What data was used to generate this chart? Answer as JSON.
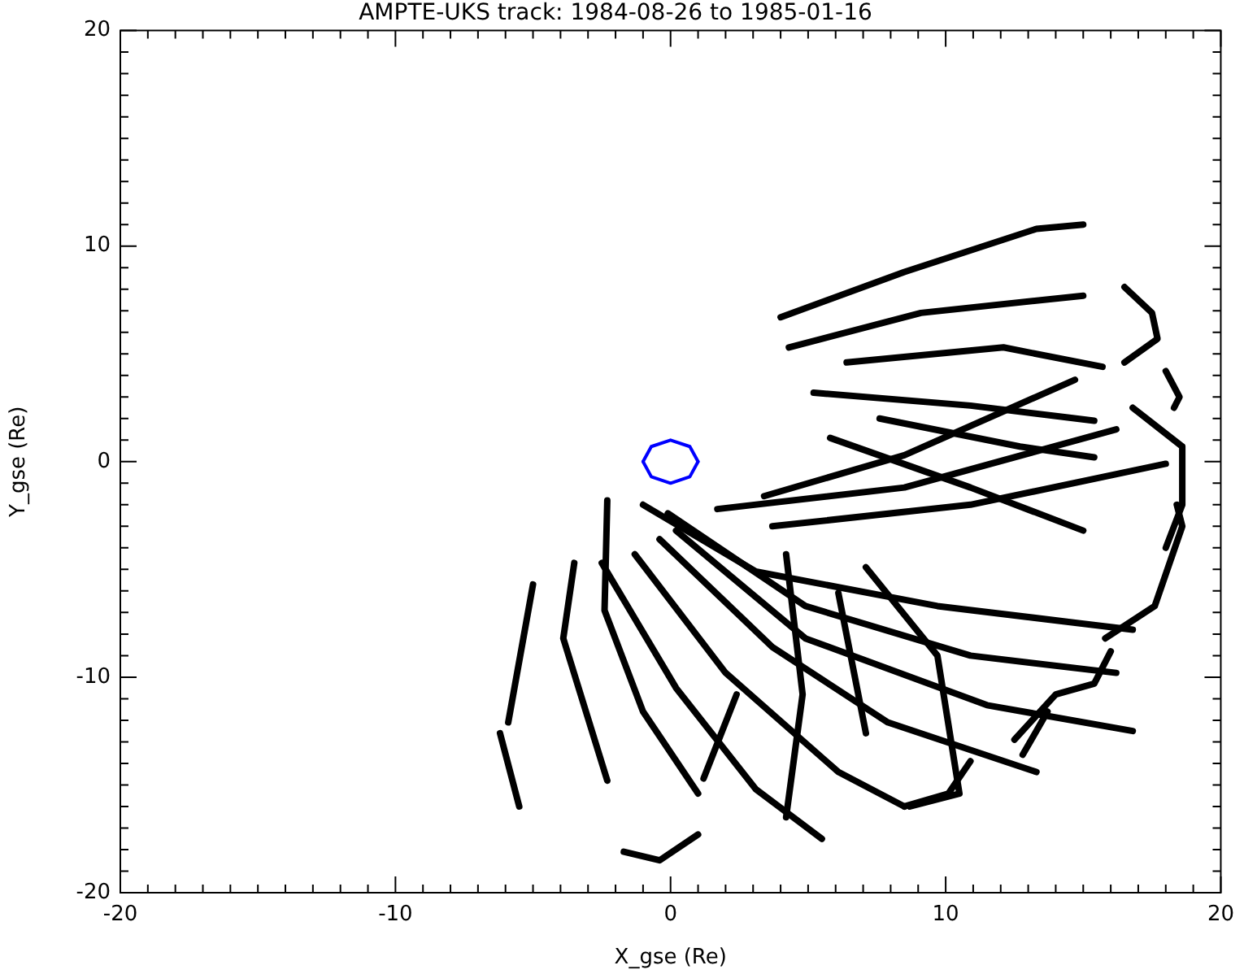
{
  "chart_data": {
    "type": "line",
    "title": "AMPTE-UKS track: 1984-08-26 to 1985-01-16",
    "xlabel": "X_gse (Re)",
    "ylabel": "Y_gse (Re)",
    "xlim": [
      -20,
      20
    ],
    "ylim": [
      -20,
      20
    ],
    "xticks": [
      -20,
      {
        "value": -19,
        "label": null
      },
      {
        "value": -18,
        "label": null
      },
      {
        "value": -17,
        "label": null
      },
      {
        "value": -16,
        "label": null
      },
      {
        "value": -15,
        "label": null
      },
      {
        "value": -14,
        "label": null
      },
      {
        "value": -13,
        "label": null
      },
      {
        "value": -12,
        "label": null
      },
      {
        "value": -11,
        "label": null
      },
      -10,
      {
        "value": -9,
        "label": null
      },
      {
        "value": -8,
        "label": null
      },
      {
        "value": -7,
        "label": null
      },
      {
        "value": -6,
        "label": null
      },
      {
        "value": -5,
        "label": null
      },
      {
        "value": -4,
        "label": null
      },
      {
        "value": -3,
        "label": null
      },
      {
        "value": -2,
        "label": null
      },
      {
        "value": -1,
        "label": null
      },
      0,
      {
        "value": 1,
        "label": null
      },
      {
        "value": 2,
        "label": null
      },
      {
        "value": 3,
        "label": null
      },
      {
        "value": 4,
        "label": null
      },
      {
        "value": 5,
        "label": null
      },
      {
        "value": 6,
        "label": null
      },
      {
        "value": 7,
        "label": null
      },
      {
        "value": 8,
        "label": null
      },
      {
        "value": 9,
        "label": null
      },
      10,
      {
        "value": 11,
        "label": null
      },
      {
        "value": 12,
        "label": null
      },
      {
        "value": 13,
        "label": null
      },
      {
        "value": 14,
        "label": null
      },
      {
        "value": 15,
        "label": null
      },
      {
        "value": 16,
        "label": null
      },
      {
        "value": 17,
        "label": null
      },
      {
        "value": 18,
        "label": null
      },
      {
        "value": 19,
        "label": null
      },
      20
    ],
    "yticks": [
      -20,
      {
        "value": -19,
        "label": null
      },
      {
        "value": -18,
        "label": null
      },
      {
        "value": -17,
        "label": null
      },
      {
        "value": -16,
        "label": null
      },
      {
        "value": -15,
        "label": null
      },
      {
        "value": -14,
        "label": null
      },
      {
        "value": -13,
        "label": null
      },
      {
        "value": -12,
        "label": null
      },
      {
        "value": -11,
        "label": null
      },
      -10,
      {
        "value": -9,
        "label": null
      },
      {
        "value": -8,
        "label": null
      },
      {
        "value": -7,
        "label": null
      },
      {
        "value": -6,
        "label": null
      },
      {
        "value": -5,
        "label": null
      },
      {
        "value": -4,
        "label": null
      },
      {
        "value": -3,
        "label": null
      },
      {
        "value": -2,
        "label": null
      },
      {
        "value": -1,
        "label": null
      },
      0,
      {
        "value": 1,
        "label": null
      },
      {
        "value": 2,
        "label": null
      },
      {
        "value": 3,
        "label": null
      },
      {
        "value": 4,
        "label": null
      },
      {
        "value": 5,
        "label": null
      },
      {
        "value": 6,
        "label": null
      },
      {
        "value": 7,
        "label": null
      },
      {
        "value": 8,
        "label": null
      },
      {
        "value": 9,
        "label": null
      },
      10,
      {
        "value": 11,
        "label": null
      },
      {
        "value": 12,
        "label": null
      },
      {
        "value": 13,
        "label": null
      },
      {
        "value": 14,
        "label": null
      },
      {
        "value": 15,
        "label": null
      },
      {
        "value": 16,
        "label": null
      },
      {
        "value": 17,
        "label": null
      },
      {
        "value": 18,
        "label": null
      },
      {
        "value": 19,
        "label": null
      },
      20
    ],
    "grid": false,
    "legend": false,
    "marker": "none",
    "line_style": "solid",
    "series": [
      {
        "color": "#000000",
        "x": [
          4.0,
          8.5,
          13.3,
          15.0
        ],
        "values": [
          6.7,
          8.8,
          10.8,
          11.0
        ]
      },
      {
        "color": "#000000",
        "x": [
          4.3,
          9.1,
          15.0
        ],
        "values": [
          5.3,
          6.9,
          7.7
        ]
      },
      {
        "color": "#000000",
        "x": [
          6.4,
          12.1,
          15.7
        ],
        "values": [
          4.6,
          5.3,
          4.4
        ]
      },
      {
        "color": "#000000",
        "x": [
          5.2,
          10.9,
          15.4
        ],
        "values": [
          3.2,
          2.6,
          1.9
        ]
      },
      {
        "color": "#000000",
        "x": [
          7.6,
          12.7,
          15.4
        ],
        "values": [
          2.0,
          0.7,
          0.2
        ]
      },
      {
        "color": "#000000",
        "x": [
          5.8,
          10.9,
          15.0
        ],
        "values": [
          1.1,
          -1.2,
          -3.2
        ]
      },
      {
        "color": "#000000",
        "x": [
          3.4,
          8.5,
          14.7
        ],
        "values": [
          -1.6,
          0.3,
          3.8
        ]
      },
      {
        "color": "#000000",
        "x": [
          1.7,
          8.5,
          16.2
        ],
        "values": [
          -2.2,
          -1.2,
          1.5
        ]
      },
      {
        "color": "#000000",
        "x": [
          3.7,
          10.9,
          18.0
        ],
        "values": [
          -3.0,
          -2.0,
          -0.1
        ]
      },
      {
        "color": "#000000",
        "x": [
          16.5,
          17.5,
          17.7,
          16.5
        ],
        "values": [
          8.1,
          6.9,
          5.7,
          4.6
        ]
      },
      {
        "color": "#000000",
        "x": [
          18.0,
          18.5,
          18.3
        ],
        "values": [
          4.2,
          3.0,
          2.5
        ]
      },
      {
        "color": "#000000",
        "x": [
          16.8,
          18.6,
          18.6,
          18.0
        ],
        "values": [
          2.5,
          0.7,
          -2.0,
          -4.0
        ]
      },
      {
        "color": "#000000",
        "x": [
          18.4,
          18.6,
          17.6,
          15.8
        ],
        "values": [
          -2.0,
          -3.0,
          -6.7,
          -8.2
        ]
      },
      {
        "color": "#000000",
        "x": [
          -1.0,
          3.1,
          9.7,
          16.8
        ],
        "values": [
          -2.0,
          -5.1,
          -6.7,
          -7.8
        ]
      },
      {
        "color": "#000000",
        "x": [
          -0.1,
          4.9,
          10.9,
          16.2
        ],
        "values": [
          -2.4,
          -6.7,
          -9.0,
          -9.8
        ]
      },
      {
        "color": "#000000",
        "x": [
          0.2,
          4.9,
          11.5,
          16.8
        ],
        "values": [
          -3.2,
          -8.2,
          -11.3,
          -12.5
        ]
      },
      {
        "color": "#000000",
        "x": [
          -0.4,
          3.7,
          7.9,
          13.3
        ],
        "values": [
          -3.6,
          -8.6,
          -12.1,
          -14.4
        ]
      },
      {
        "color": "#000000",
        "x": [
          -1.3,
          2.0,
          6.1,
          8.5
        ],
        "values": [
          -4.3,
          -9.8,
          -14.4,
          -16.0
        ]
      },
      {
        "color": "#000000",
        "x": [
          -2.5,
          0.2,
          3.1,
          5.5
        ],
        "values": [
          -4.7,
          -10.5,
          -15.2,
          -17.5
        ]
      },
      {
        "color": "#000000",
        "x": [
          -2.3,
          -2.4,
          -1.0,
          1.0
        ],
        "values": [
          -1.8,
          -6.9,
          -11.6,
          -15.4
        ]
      },
      {
        "color": "#000000",
        "x": [
          -3.5,
          -3.9,
          -2.3
        ],
        "values": [
          -4.7,
          -8.2,
          -14.8
        ]
      },
      {
        "color": "#000000",
        "x": [
          -5.0,
          -5.9
        ],
        "values": [
          -5.7,
          -12.1
        ]
      },
      {
        "color": "#000000",
        "x": [
          -6.2,
          -5.5
        ],
        "values": [
          -12.6,
          -16.0
        ]
      },
      {
        "color": "#000000",
        "x": [
          -1.7,
          -0.4,
          1.0
        ],
        "values": [
          -18.1,
          -18.5,
          -17.3
        ]
      },
      {
        "color": "#000000",
        "x": [
          4.2,
          4.8,
          4.2
        ],
        "values": [
          -4.3,
          -10.8,
          -16.5
        ]
      },
      {
        "color": "#000000",
        "x": [
          6.1,
          7.1
        ],
        "values": [
          -6.1,
          -12.6
        ]
      },
      {
        "color": "#000000",
        "x": [
          7.1,
          9.7,
          10.5,
          8.7
        ],
        "values": [
          -4.9,
          -9.0,
          -15.4,
          -16.0
        ]
      },
      {
        "color": "#000000",
        "x": [
          2.4,
          1.2
        ],
        "values": [
          -10.8,
          -14.7
        ]
      },
      {
        "color": "#000000",
        "x": [
          16.0,
          15.4,
          14.0,
          12.5
        ],
        "values": [
          -8.8,
          -10.3,
          -10.8,
          -12.9
        ]
      },
      {
        "color": "#000000",
        "x": [
          13.7,
          12.8
        ],
        "values": [
          -11.6,
          -13.6
        ]
      },
      {
        "color": "#000000",
        "x": [
          10.9,
          10.1,
          8.5
        ],
        "values": [
          -13.9,
          -15.4,
          -16.0
        ]
      },
      {
        "color": "#0000ff",
        "x": [
          -1.0,
          -0.7,
          0,
          0.7,
          1.0
        ],
        "values": [
          0,
          0.7,
          1.0,
          0.7,
          0
        ]
      },
      {
        "color": "#0000ff",
        "x": [
          -1.0,
          -0.7,
          0,
          0.7,
          1.0
        ],
        "values": [
          0,
          -0.7,
          -1.0,
          -0.7,
          0
        ]
      }
    ]
  }
}
